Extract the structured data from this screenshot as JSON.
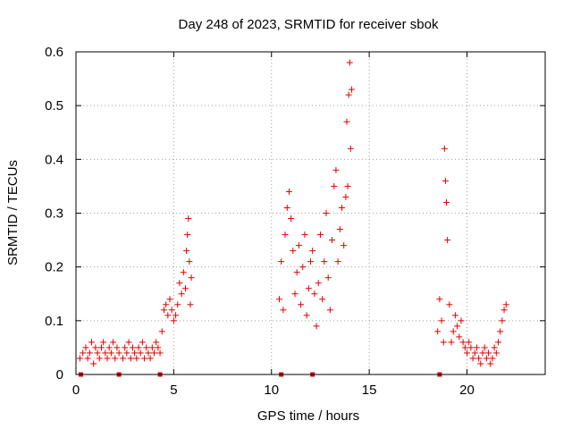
{
  "chart_data": {
    "type": "scatter",
    "title": "Day 248 of 2023, SRMTID for receiver sbok",
    "xlabel": "GPS time / hours",
    "ylabel": "SRMTID / TECUs",
    "xlim": [
      0,
      24
    ],
    "ylim": [
      0,
      0.6
    ],
    "xticks": [
      0,
      5,
      10,
      15,
      20
    ],
    "xtick_labels": [
      "0",
      "5",
      "10",
      "15",
      "20"
    ],
    "yticks": [
      0,
      0.1,
      0.2,
      0.3,
      0.4,
      0.5,
      0.6
    ],
    "ytick_labels": [
      "0",
      "0.1",
      "0.2",
      "0.3",
      "0.4",
      "0.5",
      "0.6"
    ],
    "grid": true,
    "marker": "+",
    "color": "#e00000",
    "series": [
      {
        "name": "SRMTID",
        "x": [
          0.2,
          0.35,
          0.5,
          0.6,
          0.7,
          0.8,
          0.9,
          1.0,
          1.1,
          1.2,
          1.3,
          1.4,
          1.5,
          1.6,
          1.7,
          1.8,
          1.9,
          2.0,
          2.1,
          2.2,
          2.4,
          2.5,
          2.6,
          2.7,
          2.8,
          2.9,
          3.0,
          3.1,
          3.2,
          3.3,
          3.4,
          3.5,
          3.6,
          3.7,
          3.8,
          3.9,
          4.0,
          4.1,
          4.2,
          4.3,
          4.4,
          4.5,
          4.6,
          4.7,
          4.8,
          4.9,
          5.0,
          5.1,
          5.2,
          5.3,
          5.4,
          5.5,
          5.6,
          5.65,
          5.7,
          5.75,
          5.8,
          5.85,
          5.9,
          10.4,
          10.5,
          10.6,
          10.7,
          10.8,
          10.9,
          11.0,
          11.1,
          11.2,
          11.3,
          11.4,
          11.5,
          11.6,
          11.7,
          11.8,
          11.9,
          12.0,
          12.1,
          12.2,
          12.3,
          12.4,
          12.5,
          12.6,
          12.7,
          12.8,
          12.9,
          13.0,
          13.1,
          13.2,
          13.3,
          13.4,
          13.5,
          13.6,
          13.7,
          13.8,
          13.85,
          13.9,
          13.95,
          14.0,
          14.05,
          14.1,
          18.5,
          18.6,
          18.7,
          18.8,
          18.85,
          18.9,
          18.95,
          19.0,
          19.1,
          19.2,
          19.3,
          19.4,
          19.5,
          19.6,
          19.7,
          19.8,
          19.9,
          20.0,
          20.1,
          20.2,
          20.3,
          20.4,
          20.5,
          20.6,
          20.7,
          20.8,
          20.9,
          21.0,
          21.1,
          21.2,
          21.3,
          21.4,
          21.5,
          21.6,
          21.7,
          21.8,
          21.9,
          22.0
        ],
        "y": [
          0.03,
          0.04,
          0.05,
          0.03,
          0.04,
          0.06,
          0.02,
          0.05,
          0.04,
          0.03,
          0.05,
          0.06,
          0.04,
          0.03,
          0.05,
          0.04,
          0.06,
          0.03,
          0.05,
          0.04,
          0.03,
          0.05,
          0.04,
          0.06,
          0.03,
          0.05,
          0.04,
          0.03,
          0.05,
          0.04,
          0.06,
          0.03,
          0.05,
          0.04,
          0.03,
          0.05,
          0.04,
          0.06,
          0.05,
          0.04,
          0.08,
          0.12,
          0.13,
          0.11,
          0.14,
          0.12,
          0.1,
          0.11,
          0.13,
          0.17,
          0.15,
          0.19,
          0.16,
          0.23,
          0.26,
          0.29,
          0.21,
          0.13,
          0.18,
          0.14,
          0.21,
          0.12,
          0.26,
          0.31,
          0.34,
          0.29,
          0.23,
          0.15,
          0.19,
          0.24,
          0.13,
          0.2,
          0.26,
          0.11,
          0.16,
          0.21,
          0.23,
          0.15,
          0.09,
          0.17,
          0.26,
          0.14,
          0.21,
          0.3,
          0.18,
          0.12,
          0.25,
          0.35,
          0.38,
          0.21,
          0.27,
          0.31,
          0.24,
          0.33,
          0.47,
          0.35,
          0.52,
          0.58,
          0.42,
          0.53,
          0.08,
          0.14,
          0.1,
          0.06,
          0.42,
          0.36,
          0.32,
          0.25,
          0.13,
          0.06,
          0.08,
          0.11,
          0.09,
          0.07,
          0.1,
          0.06,
          0.05,
          0.04,
          0.06,
          0.05,
          0.03,
          0.04,
          0.05,
          0.03,
          0.02,
          0.04,
          0.05,
          0.03,
          0.04,
          0.02,
          0.03,
          0.05,
          0.04,
          0.06,
          0.08,
          0.1,
          0.12,
          0.13
        ]
      }
    ],
    "baseline_markers_x": [
      0.25,
      2.2,
      4.3,
      10.5,
      12.1,
      18.6
    ]
  }
}
